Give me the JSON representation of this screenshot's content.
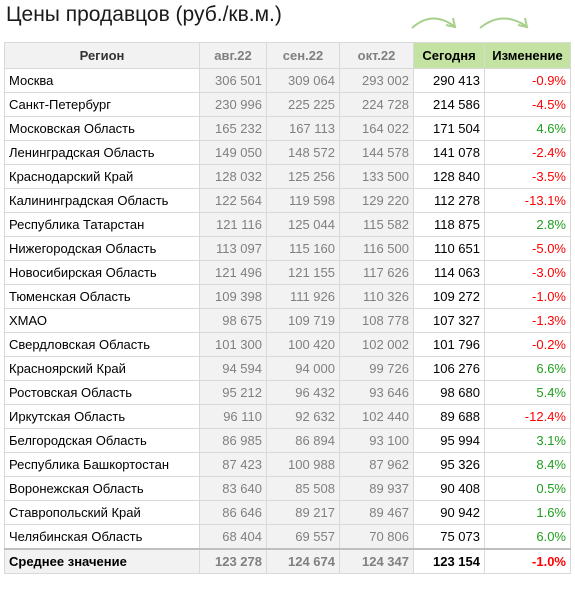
{
  "title": "Цены продавцов (руб./кв.м.)",
  "headers": [
    "Регион",
    "авг.22",
    "сен.22",
    "окт.22",
    "Сегодня",
    "Изменение"
  ],
  "rows": [
    {
      "region": "Москва",
      "aug": "306 501",
      "sep": "309 064",
      "oct": "293 002",
      "today": "290 413",
      "change": "-0.9%"
    },
    {
      "region": "Санкт-Петербург",
      "aug": "230 996",
      "sep": "225 225",
      "oct": "224 728",
      "today": "214 586",
      "change": "-4.5%"
    },
    {
      "region": "Московская Область",
      "aug": "165 232",
      "sep": "167 113",
      "oct": "164 022",
      "today": "171 504",
      "change": "4.6%"
    },
    {
      "region": "Ленинградская Область",
      "aug": "149 050",
      "sep": "148 572",
      "oct": "144 578",
      "today": "141 078",
      "change": "-2.4%"
    },
    {
      "region": "Краснодарский Край",
      "aug": "128 032",
      "sep": "125 256",
      "oct": "133 500",
      "today": "128 840",
      "change": "-3.5%"
    },
    {
      "region": "Калининградская Область",
      "aug": "122 564",
      "sep": "119 598",
      "oct": "129 220",
      "today": "112 278",
      "change": "-13.1%"
    },
    {
      "region": "Республика Татарстан",
      "aug": "121 116",
      "sep": "125 044",
      "oct": "115 582",
      "today": "118 875",
      "change": "2.8%"
    },
    {
      "region": "Нижегородская Область",
      "aug": "113 097",
      "sep": "115 160",
      "oct": "116 500",
      "today": "110 651",
      "change": "-5.0%"
    },
    {
      "region": "Новосибирская Область",
      "aug": "121 496",
      "sep": "121 155",
      "oct": "117 626",
      "today": "114 063",
      "change": "-3.0%"
    },
    {
      "region": "Тюменская Область",
      "aug": "109 398",
      "sep": "111 926",
      "oct": "110 326",
      "today": "109 272",
      "change": "-1.0%"
    },
    {
      "region": "ХМАО",
      "aug": "98 675",
      "sep": "109 719",
      "oct": "108 778",
      "today": "107 327",
      "change": "-1.3%"
    },
    {
      "region": "Свердловская Область",
      "aug": "101 300",
      "sep": "100 420",
      "oct": "102 002",
      "today": "101 796",
      "change": "-0.2%"
    },
    {
      "region": "Красноярский Край",
      "aug": "94 594",
      "sep": "94 000",
      "oct": "99 726",
      "today": "106 276",
      "change": "6.6%"
    },
    {
      "region": "Ростовская Область",
      "aug": "95 212",
      "sep": "96 432",
      "oct": "93 646",
      "today": "98 680",
      "change": "5.4%"
    },
    {
      "region": "Иркутская Область",
      "aug": "96 110",
      "sep": "92 632",
      "oct": "102 440",
      "today": "89 688",
      "change": "-12.4%"
    },
    {
      "region": "Белгородская Область",
      "aug": "86 985",
      "sep": "86 894",
      "oct": "93 100",
      "today": "95 994",
      "change": "3.1%"
    },
    {
      "region": "Республика Башкортостан",
      "aug": "87 423",
      "sep": "100 988",
      "oct": "87 962",
      "today": "95 326",
      "change": "8.4%"
    },
    {
      "region": "Воронежская Область",
      "aug": "83 640",
      "sep": "85 508",
      "oct": "89 937",
      "today": "90 408",
      "change": "0.5%"
    },
    {
      "region": "Ставропольский Край",
      "aug": "86 646",
      "sep": "89 217",
      "oct": "89 467",
      "today": "90 942",
      "change": "1.6%"
    },
    {
      "region": "Челябинская Область",
      "aug": "68 404",
      "sep": "69 557",
      "oct": "70 806",
      "today": "75 073",
      "change": "6.0%"
    }
  ],
  "average": {
    "region": "Среднее значение",
    "aug": "123 278",
    "sep": "124 674",
    "oct": "124 347",
    "today": "123 154",
    "change": "-1.0%"
  },
  "colors": {
    "header_green": "#c4e3a2",
    "negative": "#ff0000",
    "positive": "#1e9e1e",
    "arrow": "#a8d08d",
    "past_month_bg": "#f2f2f2",
    "past_month_text": "#808080"
  }
}
